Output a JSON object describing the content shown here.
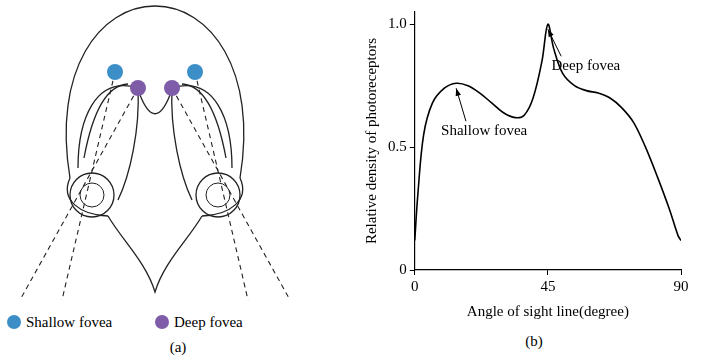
{
  "diagram": {
    "caption": "(a)",
    "legend": [
      {
        "label": "Shallow fovea",
        "color": "#3b8fc6"
      },
      {
        "label": "Deep fovea",
        "color": "#7e5ca8"
      }
    ]
  },
  "chart_data": {
    "type": "line",
    "caption": "(b)",
    "x_label": "Angle of sight line(degree)",
    "y_label": "Relative density of photoreceptors",
    "x": [
      0,
      1,
      3,
      6,
      10,
      14,
      18,
      22,
      26,
      30,
      34,
      37,
      40,
      43,
      45,
      47,
      50,
      54,
      58,
      62,
      66,
      70,
      74,
      78,
      82,
      86,
      89,
      90
    ],
    "values": [
      0.12,
      0.3,
      0.55,
      0.68,
      0.74,
      0.76,
      0.75,
      0.72,
      0.68,
      0.64,
      0.62,
      0.63,
      0.7,
      0.85,
      1.0,
      0.9,
      0.8,
      0.75,
      0.73,
      0.72,
      0.7,
      0.66,
      0.6,
      0.5,
      0.38,
      0.25,
      0.14,
      0.12
    ],
    "color": "#000000",
    "xlim": [
      0,
      90
    ],
    "xticks": [
      0,
      45,
      90
    ],
    "ylim": [
      0,
      1.05
    ],
    "yticks": [
      0,
      0.5,
      {
        "value": 1,
        "label": "1.0"
      }
    ],
    "grid": false,
    "annotations": [
      {
        "text": "Shallow fovea",
        "x": 14,
        "y": 0.76
      },
      {
        "text": "Deep fovea",
        "x": 45,
        "y": 1.0
      }
    ]
  }
}
